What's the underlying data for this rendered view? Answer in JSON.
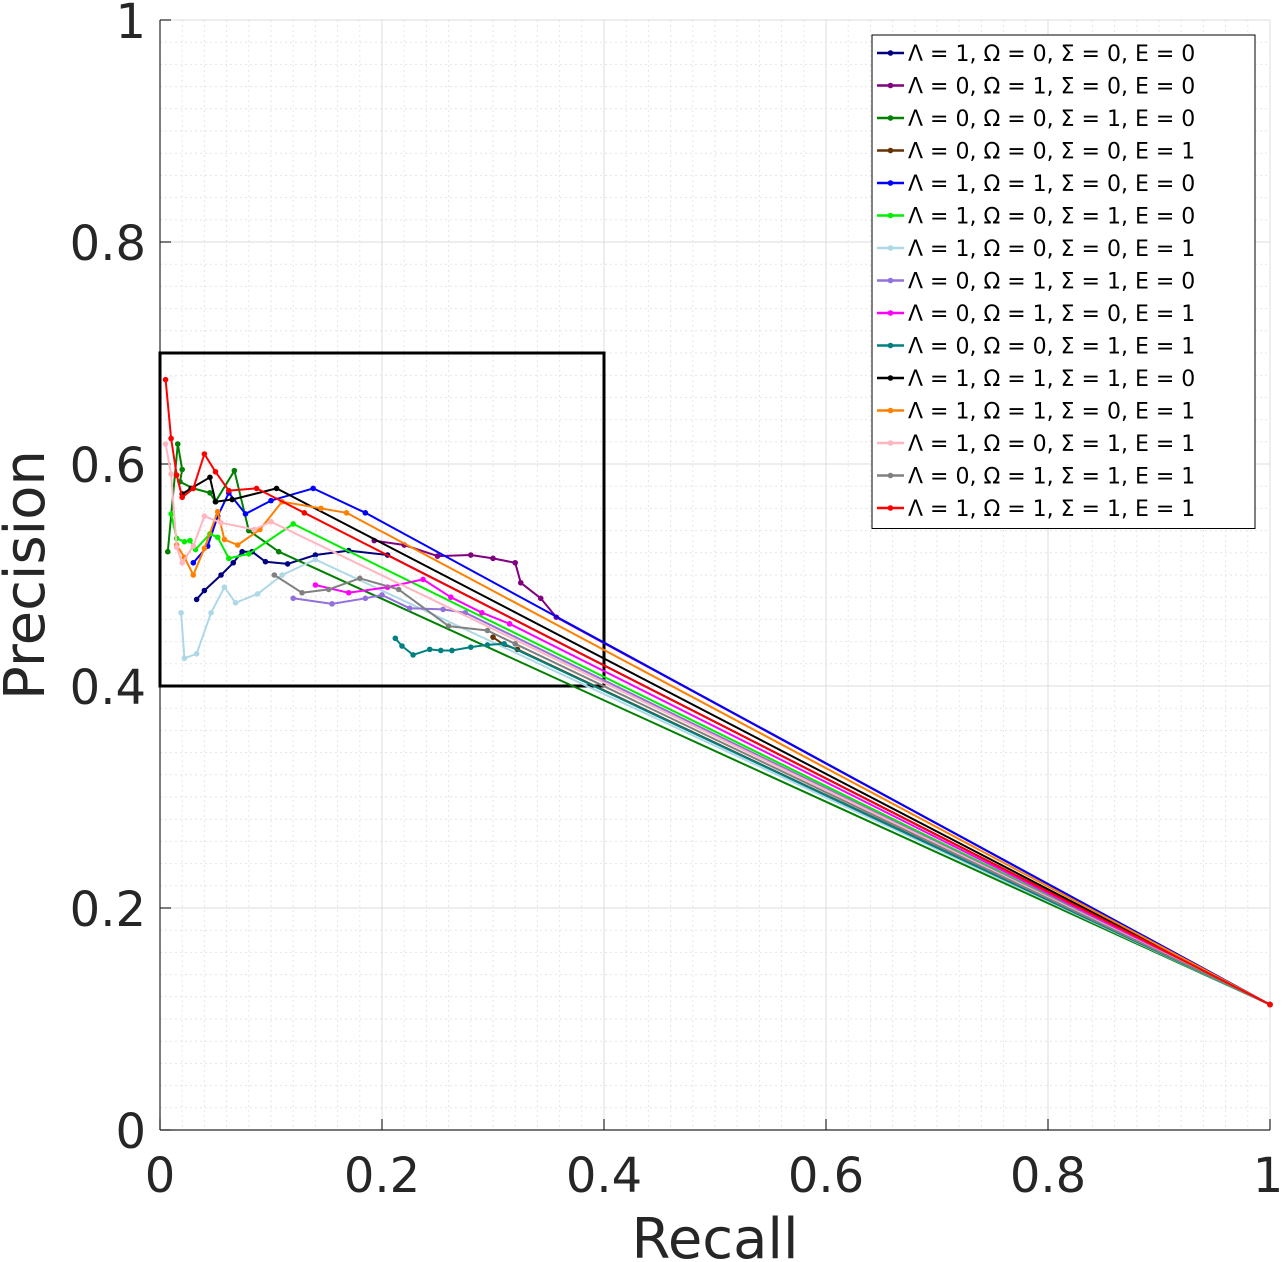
{
  "chart_data": {
    "type": "line",
    "title": "",
    "xlabel": "Recall",
    "ylabel": "Precision",
    "xlim": [
      0,
      1
    ],
    "ylim": [
      0,
      1
    ],
    "xticks": [
      "0",
      "0.2",
      "0.4",
      "0.6",
      "0.8",
      "1"
    ],
    "yticks": [
      "0",
      "0.2",
      "0.4",
      "0.6",
      "0.8",
      "1"
    ],
    "grid": true,
    "minor_grid": true,
    "legend_position": "top-right",
    "zoom_box": {
      "x": [
        0,
        0.4
      ],
      "y": [
        0.4,
        0.7
      ]
    },
    "series": [
      {
        "name": "Λ = 1, Ω = 0, Σ = 0, E = 0",
        "color": "#000080",
        "points": [
          [
            0.033,
            0.478
          ],
          [
            0.04,
            0.486
          ],
          [
            0.055,
            0.5
          ],
          [
            0.066,
            0.511
          ],
          [
            0.074,
            0.521
          ],
          [
            0.083,
            0.521
          ],
          [
            0.095,
            0.512
          ],
          [
            0.115,
            0.51
          ],
          [
            0.14,
            0.518
          ],
          [
            0.17,
            0.522
          ],
          [
            0.205,
            0.518
          ],
          [
            1.0,
            0.113
          ]
        ]
      },
      {
        "name": "Λ = 0, Ω = 1, Σ = 0, E = 0",
        "color": "#800080",
        "points": [
          [
            0.193,
            0.531
          ],
          [
            0.22,
            0.527
          ],
          [
            0.25,
            0.517
          ],
          [
            0.28,
            0.518
          ],
          [
            0.3,
            0.515
          ],
          [
            0.32,
            0.511
          ],
          [
            0.325,
            0.493
          ],
          [
            0.343,
            0.479
          ],
          [
            0.357,
            0.462
          ],
          [
            1.0,
            0.113
          ]
        ]
      },
      {
        "name": "Λ = 0, Ω = 0, Σ = 1, E = 0",
        "color": "#008000",
        "points": [
          [
            0.007,
            0.521
          ],
          [
            0.016,
            0.618
          ],
          [
            0.02,
            0.595
          ],
          [
            0.018,
            0.584
          ],
          [
            0.03,
            0.578
          ],
          [
            0.045,
            0.574
          ],
          [
            0.05,
            0.566
          ],
          [
            0.067,
            0.594
          ],
          [
            0.08,
            0.54
          ],
          [
            0.107,
            0.521
          ],
          [
            1.0,
            0.113
          ]
        ]
      },
      {
        "name": "Λ = 0, Ω = 0, Σ = 0, E = 1",
        "color": "#663300",
        "points": [
          [
            0.3,
            0.444
          ],
          [
            0.31,
            0.437
          ],
          [
            0.322,
            0.433
          ],
          [
            1.0,
            0.113
          ]
        ]
      },
      {
        "name": "Λ = 1, Ω = 1, Σ = 0, E = 0",
        "color": "#0000ff",
        "points": [
          [
            0.03,
            0.511
          ],
          [
            0.043,
            0.526
          ],
          [
            0.052,
            0.553
          ],
          [
            0.062,
            0.574
          ],
          [
            0.077,
            0.555
          ],
          [
            0.1,
            0.567
          ],
          [
            0.138,
            0.578
          ],
          [
            0.185,
            0.556
          ],
          [
            1.0,
            0.113
          ]
        ]
      },
      {
        "name": "Λ = 1, Ω = 0, Σ = 1, E = 0",
        "color": "#00ee00",
        "points": [
          [
            0.01,
            0.555
          ],
          [
            0.015,
            0.533
          ],
          [
            0.022,
            0.53
          ],
          [
            0.027,
            0.531
          ],
          [
            0.032,
            0.523
          ],
          [
            0.045,
            0.537
          ],
          [
            0.052,
            0.534
          ],
          [
            0.062,
            0.515
          ],
          [
            0.08,
            0.519
          ],
          [
            0.12,
            0.546
          ],
          [
            1.0,
            0.113
          ]
        ]
      },
      {
        "name": "Λ = 1, Ω = 0, Σ = 0, E = 1",
        "color": "#add8e6",
        "points": [
          [
            0.019,
            0.466
          ],
          [
            0.022,
            0.425
          ],
          [
            0.033,
            0.429
          ],
          [
            0.046,
            0.466
          ],
          [
            0.058,
            0.489
          ],
          [
            0.068,
            0.475
          ],
          [
            0.088,
            0.483
          ],
          [
            0.11,
            0.5
          ],
          [
            0.14,
            0.514
          ],
          [
            1.0,
            0.113
          ]
        ]
      },
      {
        "name": "Λ = 0, Ω = 1, Σ = 1, E = 0",
        "color": "#9370db",
        "points": [
          [
            0.12,
            0.479
          ],
          [
            0.155,
            0.474
          ],
          [
            0.185,
            0.479
          ],
          [
            0.2,
            0.482
          ],
          [
            0.225,
            0.47
          ],
          [
            0.255,
            0.469
          ],
          [
            0.275,
            0.466
          ],
          [
            1.0,
            0.113
          ]
        ]
      },
      {
        "name": "Λ = 0, Ω = 1, Σ = 0, E = 1",
        "color": "#ff00ff",
        "points": [
          [
            0.14,
            0.491
          ],
          [
            0.17,
            0.484
          ],
          [
            0.205,
            0.489
          ],
          [
            0.237,
            0.496
          ],
          [
            0.262,
            0.48
          ],
          [
            0.29,
            0.466
          ],
          [
            0.315,
            0.456
          ],
          [
            1.0,
            0.113
          ]
        ]
      },
      {
        "name": "Λ = 0, Ω = 0, Σ = 1, E = 1",
        "color": "#008080",
        "points": [
          [
            0.212,
            0.443
          ],
          [
            0.218,
            0.436
          ],
          [
            0.228,
            0.428
          ],
          [
            0.243,
            0.433
          ],
          [
            0.253,
            0.432
          ],
          [
            0.263,
            0.432
          ],
          [
            0.28,
            0.435
          ],
          [
            0.295,
            0.437
          ],
          [
            0.31,
            0.438
          ],
          [
            1.0,
            0.113
          ]
        ]
      },
      {
        "name": "Λ = 1, Ω = 1, Σ = 1, E = 0",
        "color": "#000000",
        "points": [
          [
            0.02,
            0.573
          ],
          [
            0.028,
            0.578
          ],
          [
            0.045,
            0.588
          ],
          [
            0.05,
            0.566
          ],
          [
            0.065,
            0.568
          ],
          [
            0.105,
            0.578
          ],
          [
            1.0,
            0.113
          ]
        ]
      },
      {
        "name": "Λ = 1, Ω = 1, Σ = 0, E = 1",
        "color": "#ff8000",
        "points": [
          [
            0.015,
            0.527
          ],
          [
            0.022,
            0.516
          ],
          [
            0.03,
            0.5
          ],
          [
            0.04,
            0.524
          ],
          [
            0.052,
            0.557
          ],
          [
            0.058,
            0.532
          ],
          [
            0.07,
            0.527
          ],
          [
            0.09,
            0.541
          ],
          [
            0.11,
            0.566
          ],
          [
            0.145,
            0.56
          ],
          [
            0.168,
            0.556
          ],
          [
            1.0,
            0.113
          ]
        ]
      },
      {
        "name": "Λ = 1, Ω = 0, Σ = 1, E = 1",
        "color": "#ffb6c1",
        "points": [
          [
            0.005,
            0.618
          ],
          [
            0.01,
            0.591
          ],
          [
            0.015,
            0.525
          ],
          [
            0.02,
            0.511
          ],
          [
            0.03,
            0.526
          ],
          [
            0.04,
            0.553
          ],
          [
            0.055,
            0.547
          ],
          [
            0.085,
            0.541
          ],
          [
            0.1,
            0.548
          ],
          [
            1.0,
            0.113
          ]
        ]
      },
      {
        "name": "Λ = 0, Ω = 1, Σ = 1, E = 1",
        "color": "#808080",
        "points": [
          [
            0.103,
            0.5
          ],
          [
            0.128,
            0.484
          ],
          [
            0.152,
            0.487
          ],
          [
            0.18,
            0.497
          ],
          [
            0.215,
            0.487
          ],
          [
            0.26,
            0.454
          ],
          [
            0.295,
            0.45
          ],
          [
            0.32,
            0.438
          ],
          [
            1.0,
            0.113
          ]
        ]
      },
      {
        "name": "Λ = 1, Ω = 1, Σ = 1, E = 1",
        "color": "#ff0000",
        "points": [
          [
            0.005,
            0.676
          ],
          [
            0.01,
            0.623
          ],
          [
            0.015,
            0.59
          ],
          [
            0.02,
            0.57
          ],
          [
            0.03,
            0.578
          ],
          [
            0.04,
            0.609
          ],
          [
            0.05,
            0.593
          ],
          [
            0.062,
            0.576
          ],
          [
            0.087,
            0.578
          ],
          [
            0.13,
            0.556
          ],
          [
            1.0,
            0.113
          ]
        ]
      }
    ]
  }
}
